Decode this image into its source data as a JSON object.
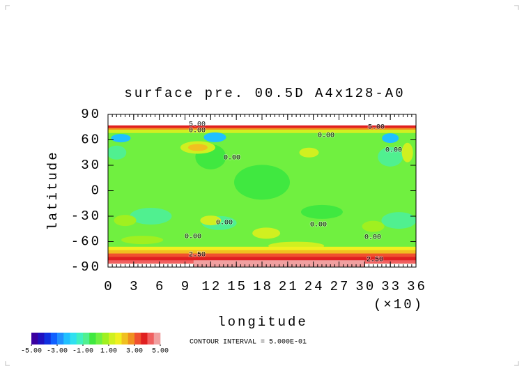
{
  "chart_data": {
    "type": "contour",
    "title": "surface pre. 00.5D A4x128-A0",
    "x_label": "longitude",
    "y_label": "latitude",
    "x_scale_note": "(×10)",
    "xlim": [
      0,
      36
    ],
    "ylim": [
      -90,
      90
    ],
    "xticks": [
      0,
      3,
      6,
      9,
      12,
      15,
      18,
      21,
      24,
      27,
      30,
      33,
      36
    ],
    "yticks": [
      90,
      60,
      30,
      0,
      -30,
      -60,
      -90
    ],
    "contour_interval_text": "CONTOUR INTERVAL = 5.000E-01",
    "contour_labels": [
      "5.00",
      "0.00",
      "0.00",
      "5.00",
      "0.00",
      "0.00",
      "0.00",
      "0.00",
      "0.00",
      "0.00",
      "2.50",
      "2.50"
    ],
    "colorbar": {
      "lim": [
        -5,
        5
      ],
      "ticks": [
        {
          "value": -5,
          "label": "-5.00"
        },
        {
          "value": -3,
          "label": "-3.00"
        },
        {
          "value": -1,
          "label": "-1.00"
        },
        {
          "value": 1,
          "label": "1.00"
        },
        {
          "value": 3,
          "label": "3.00"
        },
        {
          "value": 5,
          "label": "5.00"
        }
      ],
      "colors": [
        "#3a00a0",
        "#2010c0",
        "#1030e0",
        "#1060ff",
        "#2090ff",
        "#20c0ff",
        "#30e0f0",
        "#40f0c0",
        "#50f090",
        "#40e840",
        "#70f040",
        "#a0f020",
        "#d0f020",
        "#f0f020",
        "#f0c020",
        "#f09020",
        "#f05030",
        "#e02020",
        "#f06060",
        "#f0a0a0"
      ]
    }
  }
}
